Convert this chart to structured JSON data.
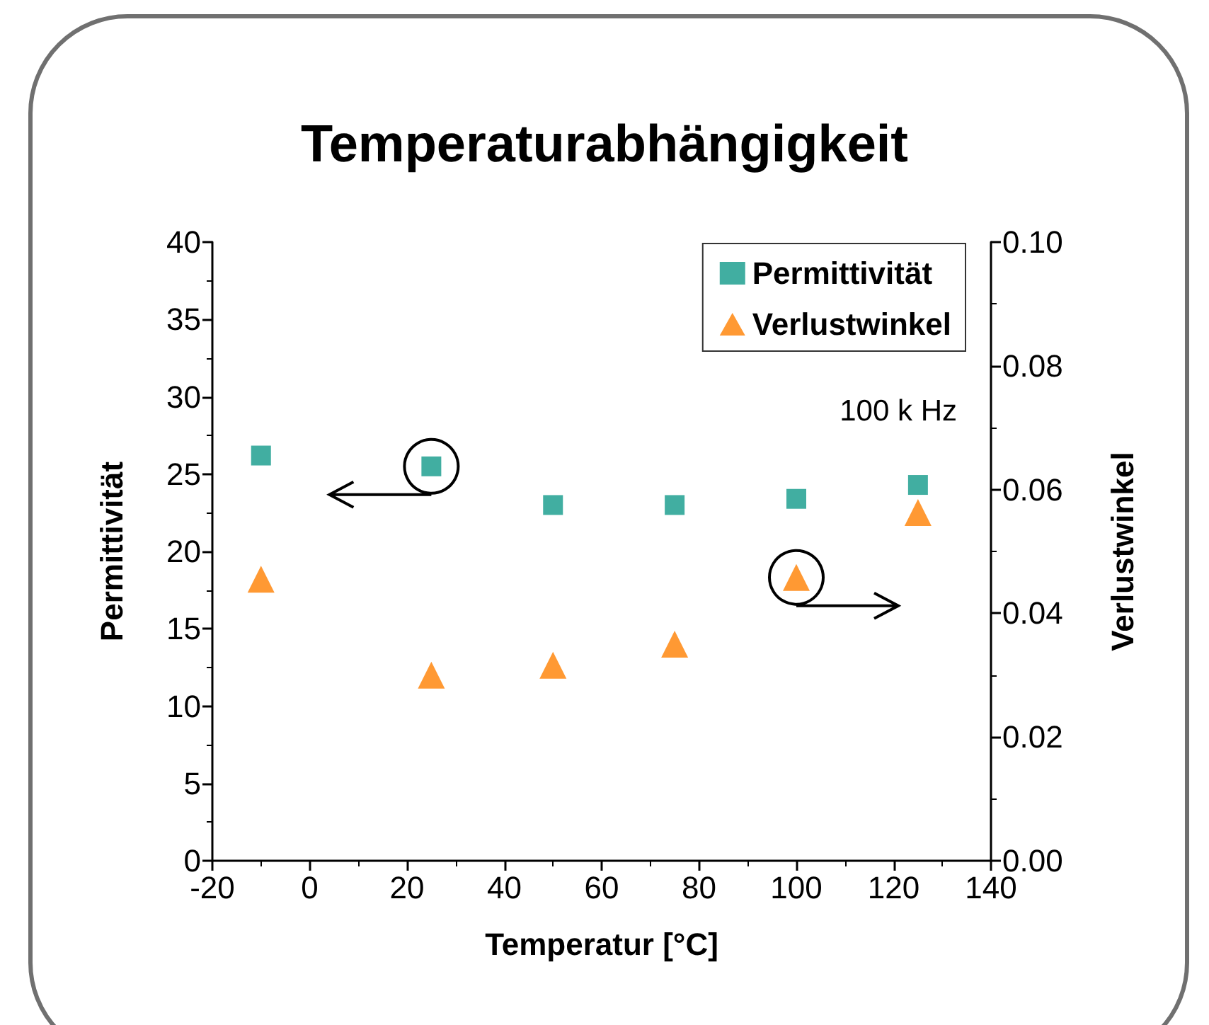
{
  "chart_data": {
    "type": "scatter",
    "title": "Temperaturabhängigkeit",
    "xlabel": "Temperatur [°C]",
    "ylabel": "Permittivität",
    "y2label": "Verlustwinkel",
    "x": [
      -10,
      25,
      50,
      75,
      100,
      125
    ],
    "series": [
      {
        "name": "Permittivität",
        "color": "#119a8a",
        "marker": "square",
        "values": [
          26.2,
          25.5,
          23.0,
          23.0,
          23.4,
          24.3
        ]
      },
      {
        "name": "Verlustwinkel",
        "color": "#ff8000",
        "marker": "triangle",
        "axis": "y2",
        "values": [
          0.0455,
          0.03,
          0.0316,
          0.035,
          0.0458,
          0.0563
        ]
      }
    ],
    "xlim": [
      -20,
      140
    ],
    "xticks": [
      -20,
      0,
      20,
      40,
      60,
      80,
      100,
      120,
      140
    ],
    "ylim": [
      0,
      40
    ],
    "yticks": [
      0,
      5,
      10,
      15,
      20,
      25,
      30,
      35,
      40
    ],
    "y2lim": [
      0,
      0.1
    ],
    "y2ticks": [
      {
        "value": 0,
        "label": "0.00"
      },
      {
        "value": 0.02,
        "label": "0.02"
      },
      {
        "value": 0.04,
        "label": "0.04"
      },
      {
        "value": 0.06,
        "label": "0.06"
      },
      {
        "value": 0.08,
        "label": "0.08"
      },
      {
        "value": 0.1,
        "label": "0.10"
      }
    ],
    "annotations": [
      "100 k Hz"
    ],
    "legend": "top right",
    "grid": false
  }
}
